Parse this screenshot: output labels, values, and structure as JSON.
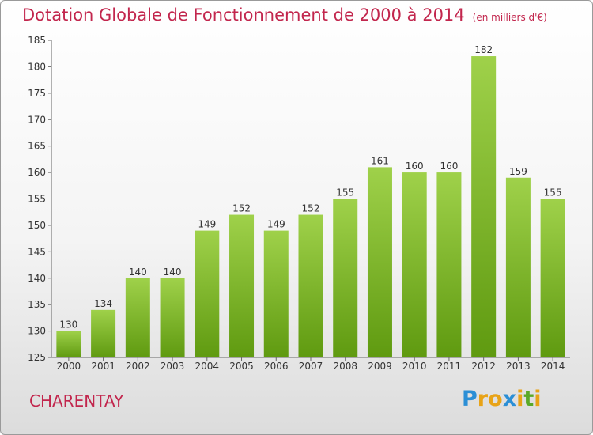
{
  "title": "Dotation Globale de Fonctionnement de 2000 à 2014",
  "subtitle": "(en milliers d'€)",
  "commune": "CHARENTAY",
  "logo": {
    "letters": [
      "P",
      "r",
      "o",
      "x",
      "i",
      "t",
      "i"
    ]
  },
  "colors": {
    "title": "#c2264d",
    "bar_top": "#9fd14a",
    "bar_bottom": "#5f9a10",
    "logo": [
      "#2b8fd6",
      "#e8a317",
      "#e8a317",
      "#2b8fd6",
      "#e8a317",
      "#5aa928",
      "#e8a317"
    ]
  },
  "chart_data": {
    "type": "bar",
    "title": "Dotation Globale de Fonctionnement de 2000 à 2014",
    "subtitle": "(en milliers d'€)",
    "categories": [
      "2000",
      "2001",
      "2002",
      "2003",
      "2004",
      "2005",
      "2006",
      "2007",
      "2008",
      "2009",
      "2010",
      "2011",
      "2012",
      "2013",
      "2014"
    ],
    "values": [
      130,
      134,
      140,
      140,
      149,
      152,
      149,
      152,
      155,
      161,
      160,
      160,
      182,
      159,
      155
    ],
    "ylim": [
      125,
      185
    ],
    "yticks": [
      125,
      130,
      135,
      140,
      145,
      150,
      155,
      160,
      165,
      170,
      175,
      180,
      185
    ],
    "grid": false,
    "xlabel": "",
    "ylabel": ""
  }
}
